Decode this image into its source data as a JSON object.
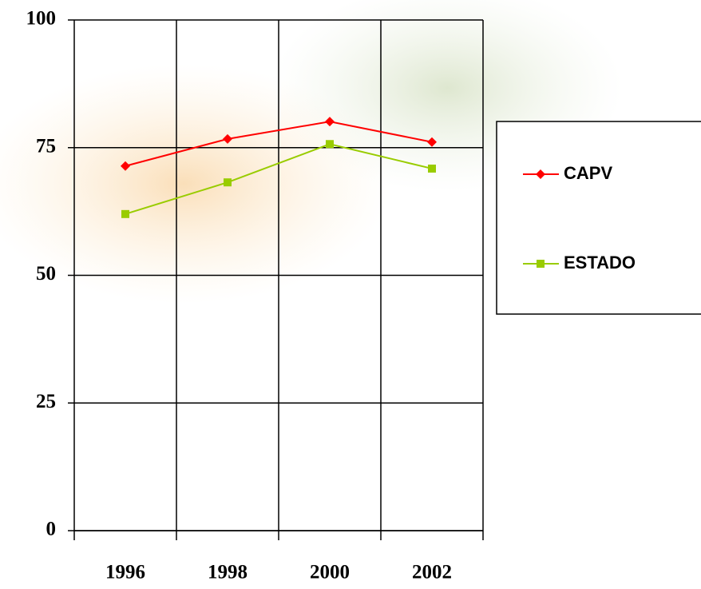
{
  "chart_data": {
    "type": "line",
    "categories": [
      "1996",
      "1998",
      "2000",
      "2002"
    ],
    "series": [
      {
        "name": "CAPV",
        "color": "#ff0000",
        "marker": "diamond",
        "values": [
          71.4,
          76.7,
          80.1,
          76.1
        ]
      },
      {
        "name": "ESTADO",
        "color": "#99cc00",
        "marker": "square",
        "values": [
          62.0,
          68.2,
          75.7,
          70.9
        ]
      }
    ],
    "ylim": [
      0,
      100
    ],
    "yticks": [
      0,
      25,
      50,
      75,
      100
    ],
    "grid": true,
    "legend": "right"
  }
}
